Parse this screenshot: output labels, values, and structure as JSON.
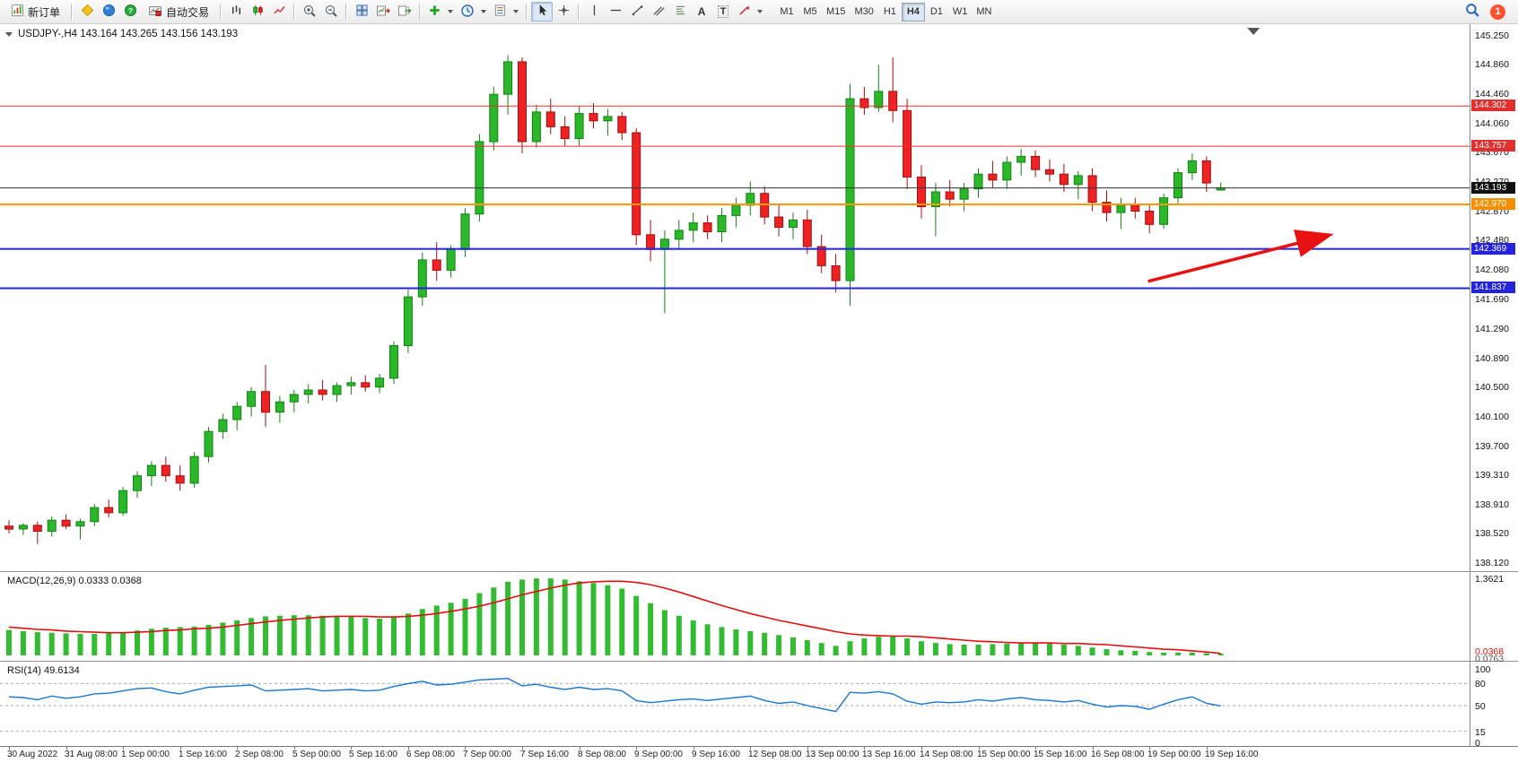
{
  "toolbar": {
    "new_order": "新订单",
    "auto_trading": "自动交易",
    "text_tool": "A",
    "label_tool": "T",
    "timeframes": [
      "M1",
      "M5",
      "M15",
      "M30",
      "H1",
      "H4",
      "D1",
      "W1",
      "MN"
    ],
    "active_timeframe": "H4",
    "notification_count": "1"
  },
  "chart": {
    "title": "USDJPY-,H4  143.164 143.265 143.156 143.193",
    "symbol": "USDJPY-",
    "period": "H4",
    "ohlc": {
      "open": "143.164",
      "high": "143.265",
      "low": "143.156",
      "close": "143.193"
    }
  },
  "chart_data": {
    "type": "candlestick",
    "symbol": "USDJPY-",
    "timeframe": "H4",
    "colors": {
      "bull": "#2ab82a",
      "bull_border": "#158015",
      "bear": "#ee2222",
      "bear_border": "#a01010",
      "macd_hist": "#33bb33",
      "macd_signal": "#e01010",
      "rsi_line": "#1976d2",
      "arrow": "#e81212"
    },
    "price_axis": {
      "min": 138.12,
      "max": 145.25,
      "ticks": [
        "145.250",
        "144.860",
        "144.460",
        "144.060",
        "143.670",
        "143.270",
        "142.870",
        "142.480",
        "142.080",
        "141.690",
        "141.290",
        "140.890",
        "140.500",
        "140.100",
        "139.700",
        "139.310",
        "138.910",
        "138.520",
        "138.120"
      ]
    },
    "hlines": [
      {
        "price": 144.302,
        "label": "144.302",
        "color": "#ee3030",
        "width": 1,
        "badge": "#e03030"
      },
      {
        "price": 143.757,
        "label": "143.757",
        "color": "#ee3030",
        "width": 1,
        "badge": "#e03030"
      },
      {
        "price": 143.193,
        "label": "143.193",
        "color": "#333333",
        "width": 1,
        "badge": "#111111",
        "current": true
      },
      {
        "price": 142.97,
        "label": "142.970",
        "color": "#ff9800",
        "width": 2,
        "badge": "#f49000"
      },
      {
        "price": 142.369,
        "label": "142.369",
        "color": "#2424dd",
        "width": 2,
        "badge": "#2424dd"
      },
      {
        "price": 141.837,
        "label": "141.837",
        "color": "#2424dd",
        "width": 2,
        "badge": "#2424dd"
      }
    ],
    "time_labels": [
      "30 Aug 2022",
      "31 Aug 08:00",
      "1 Sep 00:00",
      "1 Sep 16:00",
      "2 Sep 08:00",
      "5 Sep 00:00",
      "5 Sep 16:00",
      "6 Sep 08:00",
      "7 Sep 00:00",
      "7 Sep 16:00",
      "8 Sep 08:00",
      "9 Sep 00:00",
      "9 Sep 16:00",
      "12 Sep 08:00",
      "13 Sep 00:00",
      "13 Sep 16:00",
      "14 Sep 08:00",
      "15 Sep 00:00",
      "15 Sep 16:00",
      "16 Sep 08:00",
      "19 Sep 00:00",
      "19 Sep 16:00"
    ],
    "label_stride": 4,
    "candles": [
      [
        138.62,
        138.7,
        138.52,
        138.58
      ],
      [
        138.58,
        138.66,
        138.5,
        138.63
      ],
      [
        138.63,
        138.68,
        138.38,
        138.55
      ],
      [
        138.55,
        138.75,
        138.48,
        138.7
      ],
      [
        138.7,
        138.78,
        138.58,
        138.62
      ],
      [
        138.62,
        138.72,
        138.44,
        138.68
      ],
      [
        138.68,
        138.92,
        138.62,
        138.87
      ],
      [
        138.87,
        138.98,
        138.74,
        138.8
      ],
      [
        138.8,
        139.15,
        138.76,
        139.1
      ],
      [
        139.1,
        139.36,
        139.0,
        139.3
      ],
      [
        139.3,
        139.5,
        139.16,
        139.44
      ],
      [
        139.44,
        139.56,
        139.22,
        139.3
      ],
      [
        139.3,
        139.44,
        139.1,
        139.2
      ],
      [
        139.2,
        139.62,
        139.14,
        139.56
      ],
      [
        139.56,
        139.96,
        139.48,
        139.9
      ],
      [
        139.9,
        140.14,
        139.8,
        140.06
      ],
      [
        140.06,
        140.3,
        139.92,
        140.24
      ],
      [
        140.24,
        140.5,
        140.1,
        140.44
      ],
      [
        140.44,
        140.8,
        139.96,
        140.16
      ],
      [
        140.16,
        140.38,
        140.02,
        140.3
      ],
      [
        140.3,
        140.46,
        140.16,
        140.4
      ],
      [
        140.4,
        140.54,
        140.28,
        140.46
      ],
      [
        140.46,
        140.6,
        140.32,
        140.4
      ],
      [
        140.4,
        140.56,
        140.3,
        140.52
      ],
      [
        140.52,
        140.64,
        140.4,
        140.56
      ],
      [
        140.56,
        140.66,
        140.44,
        140.5
      ],
      [
        140.5,
        140.68,
        140.42,
        140.62
      ],
      [
        140.62,
        141.12,
        140.54,
        141.06
      ],
      [
        141.06,
        141.82,
        140.96,
        141.72
      ],
      [
        141.72,
        142.32,
        141.6,
        142.22
      ],
      [
        142.22,
        142.46,
        141.94,
        142.08
      ],
      [
        142.08,
        142.42,
        141.98,
        142.36
      ],
      [
        142.36,
        142.92,
        142.26,
        142.84
      ],
      [
        142.84,
        143.92,
        142.74,
        143.82
      ],
      [
        143.82,
        144.56,
        143.7,
        144.46
      ],
      [
        144.46,
        144.99,
        144.18,
        144.9
      ],
      [
        144.9,
        144.96,
        143.66,
        143.82
      ],
      [
        143.82,
        144.32,
        143.74,
        144.22
      ],
      [
        144.22,
        144.4,
        143.92,
        144.02
      ],
      [
        144.02,
        144.16,
        143.76,
        143.86
      ],
      [
        143.86,
        144.3,
        143.76,
        144.2
      ],
      [
        144.2,
        144.34,
        144.0,
        144.1
      ],
      [
        144.1,
        144.26,
        143.9,
        144.16
      ],
      [
        144.16,
        144.22,
        143.84,
        143.94
      ],
      [
        143.94,
        144.0,
        142.42,
        142.56
      ],
      [
        142.56,
        142.76,
        142.2,
        142.36
      ],
      [
        142.36,
        142.62,
        141.5,
        142.5
      ],
      [
        142.5,
        142.76,
        142.36,
        142.62
      ],
      [
        142.62,
        142.86,
        142.46,
        142.72
      ],
      [
        142.72,
        142.82,
        142.5,
        142.6
      ],
      [
        142.6,
        142.92,
        142.46,
        142.82
      ],
      [
        142.82,
        143.06,
        142.66,
        142.96
      ],
      [
        142.96,
        143.28,
        142.82,
        143.12
      ],
      [
        143.12,
        143.22,
        142.7,
        142.8
      ],
      [
        142.8,
        142.96,
        142.54,
        142.66
      ],
      [
        142.66,
        142.86,
        142.5,
        142.76
      ],
      [
        142.76,
        142.9,
        142.3,
        142.4
      ],
      [
        142.4,
        142.56,
        142.04,
        142.14
      ],
      [
        142.14,
        142.3,
        141.78,
        141.94
      ],
      [
        141.94,
        144.6,
        141.6,
        144.4
      ],
      [
        144.4,
        144.56,
        144.18,
        144.28
      ],
      [
        144.28,
        144.86,
        144.22,
        144.5
      ],
      [
        144.5,
        144.96,
        144.08,
        144.24
      ],
      [
        144.24,
        144.4,
        143.18,
        143.34
      ],
      [
        143.34,
        143.5,
        142.78,
        142.94
      ],
      [
        142.94,
        143.26,
        142.54,
        143.14
      ],
      [
        143.14,
        143.3,
        142.94,
        143.04
      ],
      [
        143.04,
        143.26,
        142.88,
        143.18
      ],
      [
        143.18,
        143.46,
        143.06,
        143.38
      ],
      [
        143.38,
        143.56,
        143.2,
        143.3
      ],
      [
        143.3,
        143.62,
        143.18,
        143.54
      ],
      [
        143.54,
        143.72,
        143.36,
        143.62
      ],
      [
        143.62,
        143.7,
        143.34,
        143.44
      ],
      [
        143.44,
        143.58,
        143.28,
        143.38
      ],
      [
        143.38,
        143.52,
        143.14,
        143.24
      ],
      [
        143.24,
        143.42,
        143.04,
        143.36
      ],
      [
        143.36,
        143.46,
        142.88,
        143.0
      ],
      [
        143.0,
        143.16,
        142.74,
        142.86
      ],
      [
        142.86,
        143.06,
        142.64,
        142.96
      ],
      [
        142.96,
        143.06,
        142.78,
        142.88
      ],
      [
        142.88,
        142.96,
        142.58,
        142.7
      ],
      [
        142.7,
        143.12,
        142.64,
        143.06
      ],
      [
        143.06,
        143.46,
        142.96,
        143.4
      ],
      [
        143.4,
        143.66,
        143.3,
        143.56
      ],
      [
        143.56,
        143.62,
        143.14,
        143.26
      ],
      [
        143.164,
        143.265,
        143.156,
        143.193
      ]
    ],
    "arrow": {
      "from_bar": 79.9,
      "from_price": 141.93,
      "to_bar": 92.5,
      "to_price": 142.55
    },
    "shift_marker_bar": 87.3,
    "macd": {
      "label": "MACD(12,26,9) 0.0333 0.0368",
      "scale_max": 1.3621,
      "scale_labels": {
        "top": "1.3621",
        "current": "0.0368",
        "bottom": "0.0763"
      },
      "histogram": [
        0.45,
        0.43,
        0.41,
        0.4,
        0.39,
        0.38,
        0.38,
        0.39,
        0.41,
        0.44,
        0.47,
        0.49,
        0.5,
        0.51,
        0.54,
        0.58,
        0.62,
        0.66,
        0.69,
        0.7,
        0.71,
        0.71,
        0.7,
        0.69,
        0.68,
        0.66,
        0.65,
        0.68,
        0.74,
        0.82,
        0.88,
        0.93,
        1.0,
        1.1,
        1.2,
        1.3,
        1.34,
        1.36,
        1.36,
        1.34,
        1.31,
        1.28,
        1.24,
        1.18,
        1.05,
        0.92,
        0.8,
        0.7,
        0.62,
        0.55,
        0.5,
        0.46,
        0.43,
        0.4,
        0.36,
        0.32,
        0.27,
        0.22,
        0.17,
        0.25,
        0.3,
        0.33,
        0.34,
        0.3,
        0.25,
        0.22,
        0.2,
        0.19,
        0.19,
        0.2,
        0.21,
        0.22,
        0.22,
        0.21,
        0.19,
        0.17,
        0.14,
        0.11,
        0.09,
        0.08,
        0.06,
        0.05,
        0.05,
        0.05,
        0.04,
        0.033
      ],
      "signal": [
        0.5,
        0.48,
        0.46,
        0.45,
        0.43,
        0.42,
        0.41,
        0.4,
        0.4,
        0.41,
        0.42,
        0.44,
        0.45,
        0.47,
        0.48,
        0.5,
        0.53,
        0.56,
        0.59,
        0.62,
        0.64,
        0.66,
        0.68,
        0.69,
        0.69,
        0.69,
        0.68,
        0.68,
        0.69,
        0.71,
        0.74,
        0.78,
        0.82,
        0.87,
        0.93,
        1.0,
        1.07,
        1.13,
        1.19,
        1.24,
        1.28,
        1.3,
        1.31,
        1.31,
        1.29,
        1.25,
        1.19,
        1.12,
        1.04,
        0.96,
        0.88,
        0.81,
        0.74,
        0.68,
        0.62,
        0.57,
        0.52,
        0.47,
        0.42,
        0.38,
        0.36,
        0.35,
        0.34,
        0.34,
        0.33,
        0.31,
        0.29,
        0.27,
        0.25,
        0.24,
        0.23,
        0.22,
        0.22,
        0.22,
        0.21,
        0.21,
        0.2,
        0.19,
        0.17,
        0.15,
        0.13,
        0.11,
        0.1,
        0.08,
        0.06,
        0.037
      ]
    },
    "rsi": {
      "label": "RSI(14) 49.6134",
      "levels": [
        80,
        50,
        15
      ],
      "scale_labels": [
        {
          "label": "100",
          "value": 100
        },
        {
          "label": "80",
          "value": 80
        },
        {
          "label": "50",
          "value": 50
        },
        {
          "label": "15",
          "value": 15
        },
        {
          "label": "0",
          "value": 0
        }
      ],
      "values": [
        62,
        61,
        58,
        63,
        60,
        62,
        66,
        67,
        70,
        73,
        74,
        69,
        66,
        71,
        75,
        76,
        77,
        78,
        70,
        71,
        72,
        73,
        70,
        71,
        72,
        70,
        71,
        76,
        80,
        83,
        78,
        79,
        82,
        85,
        86,
        87,
        77,
        79,
        75,
        72,
        75,
        72,
        73,
        70,
        57,
        54,
        56,
        58,
        59,
        57,
        59,
        61,
        63,
        57,
        53,
        55,
        50,
        46,
        42,
        68,
        67,
        69,
        66,
        56,
        52,
        55,
        54,
        55,
        58,
        56,
        59,
        61,
        58,
        57,
        55,
        57,
        52,
        48,
        50,
        49,
        45,
        52,
        58,
        62,
        53,
        49.61
      ]
    }
  }
}
